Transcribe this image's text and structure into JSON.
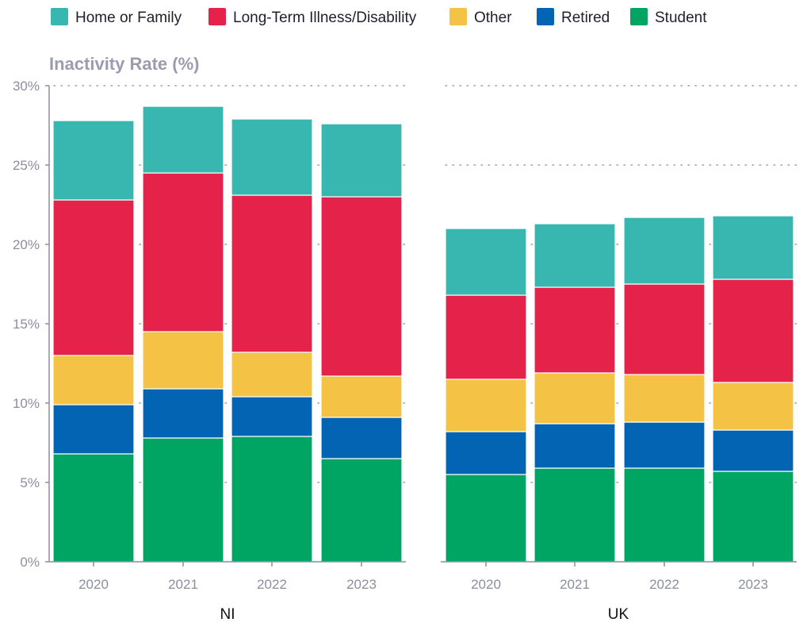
{
  "chart_data": {
    "type": "bar",
    "stacked": true,
    "ylabel": "Inactivity Rate (%)",
    "ylim": [
      0,
      30
    ],
    "yticks": [
      "0%",
      "5%",
      "10%",
      "15%",
      "20%",
      "25%",
      "30%"
    ],
    "legend": {
      "placement": "top",
      "items": [
        {
          "name": "Home or Family",
          "color": "#38b7b1"
        },
        {
          "name": "Long-Term Illness/Disability",
          "color": "#e5234a"
        },
        {
          "name": "Other",
          "color": "#f4c245"
        },
        {
          "name": "Retired",
          "color": "#0264b3"
        },
        {
          "name": "Student",
          "color": "#00a564"
        }
      ]
    },
    "panels": [
      {
        "label": "NI",
        "categories": [
          "2020",
          "2021",
          "2022",
          "2023"
        ],
        "series": [
          {
            "name": "Student",
            "values": [
              6.8,
              7.8,
              7.9,
              6.5
            ]
          },
          {
            "name": "Retired",
            "values": [
              3.1,
              3.1,
              2.5,
              2.6
            ]
          },
          {
            "name": "Other",
            "values": [
              3.1,
              3.6,
              2.8,
              2.6
            ]
          },
          {
            "name": "Long-Term Illness/Disability",
            "values": [
              9.8,
              10.0,
              9.9,
              11.3
            ]
          },
          {
            "name": "Home or Family",
            "values": [
              5.0,
              4.2,
              4.8,
              4.6
            ]
          }
        ]
      },
      {
        "label": "UK",
        "categories": [
          "2020",
          "2021",
          "2022",
          "2023"
        ],
        "series": [
          {
            "name": "Student",
            "values": [
              5.5,
              5.9,
              5.9,
              5.7
            ]
          },
          {
            "name": "Retired",
            "values": [
              2.7,
              2.8,
              2.9,
              2.6
            ]
          },
          {
            "name": "Other",
            "values": [
              3.3,
              3.2,
              3.0,
              3.0
            ]
          },
          {
            "name": "Long-Term Illness/Disability",
            "values": [
              5.3,
              5.4,
              5.7,
              6.5
            ]
          },
          {
            "name": "Home or Family",
            "values": [
              4.2,
              4.0,
              4.2,
              4.0
            ]
          }
        ]
      }
    ],
    "grid": true
  }
}
